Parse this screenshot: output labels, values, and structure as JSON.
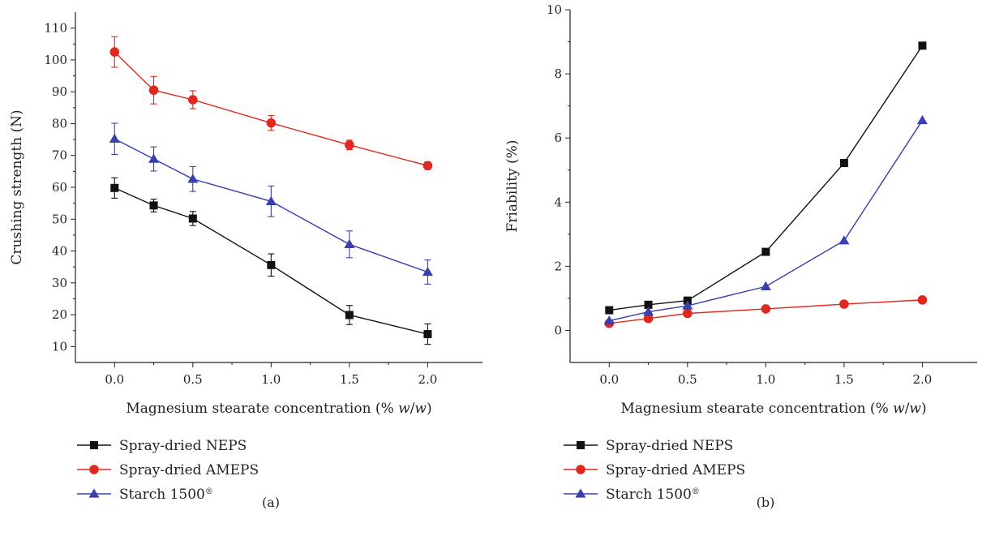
{
  "colors": {
    "neps": "#111111",
    "ameps": "#e0281e",
    "starch": "#3a3fae",
    "axis": "#222222"
  },
  "legend_markers": [
    "square",
    "circle",
    "triangle"
  ],
  "chart_data": [
    {
      "type": "line",
      "panel_label": "(a)",
      "xlabel": "Magnesium stearate concentration (% w/w)",
      "ylabel": "Crushing strength (N)",
      "x": [
        0.0,
        0.25,
        0.5,
        1.0,
        1.5,
        2.0
      ],
      "x_ticks": [
        "0.0",
        "0.5",
        "1.0",
        "1.5",
        "2.0"
      ],
      "y_ticks": [
        "10",
        "20",
        "30",
        "40",
        "50",
        "60",
        "70",
        "80",
        "90",
        "100",
        "110"
      ],
      "xlim": [
        -0.25,
        2.35
      ],
      "ylim": [
        5,
        115
      ],
      "grid": false,
      "legend_position": "below",
      "series": [
        {
          "name": "Spray-dried NEPS",
          "marker": "square",
          "values": [
            59.8,
            54.3,
            50.2,
            35.6,
            19.9,
            13.9
          ],
          "errors": [
            3.2,
            2.0,
            2.2,
            3.5,
            3.0,
            3.2
          ]
        },
        {
          "name": "Spray-dried AMEPS",
          "marker": "circle",
          "values": [
            102.5,
            90.5,
            87.5,
            80.2,
            73.3,
            66.8
          ],
          "errors": [
            4.8,
            4.3,
            2.8,
            2.3,
            1.5,
            1.2
          ]
        },
        {
          "name": "Starch 1500®",
          "marker": "triangle",
          "values": [
            75.2,
            68.9,
            62.6,
            55.6,
            42.1,
            33.4
          ],
          "errors": [
            4.9,
            3.8,
            3.9,
            4.8,
            4.2,
            3.8
          ]
        }
      ]
    },
    {
      "type": "line",
      "panel_label": "(b)",
      "xlabel": "Magnesium stearate concentration (% w/w)",
      "ylabel": "Friability (%)",
      "x": [
        0.0,
        0.25,
        0.5,
        1.0,
        1.5,
        2.0
      ],
      "x_ticks": [
        "0.0",
        "0.5",
        "1.0",
        "1.5",
        "2.0"
      ],
      "y_ticks": [
        "0",
        "2",
        "4",
        "6",
        "8",
        "10"
      ],
      "xlim": [
        -0.25,
        2.35
      ],
      "ylim": [
        -1,
        10
      ],
      "grid": false,
      "legend_position": "below",
      "series": [
        {
          "name": "Spray-dried NEPS",
          "marker": "square",
          "values": [
            0.63,
            0.8,
            0.93,
            2.45,
            5.22,
            8.88
          ]
        },
        {
          "name": "Spray-dried AMEPS",
          "marker": "circle",
          "values": [
            0.22,
            0.37,
            0.53,
            0.67,
            0.82,
            0.95
          ]
        },
        {
          "name": "Starch 1500®",
          "marker": "triangle",
          "values": [
            0.3,
            0.58,
            0.77,
            1.37,
            2.8,
            6.55
          ]
        }
      ]
    }
  ]
}
